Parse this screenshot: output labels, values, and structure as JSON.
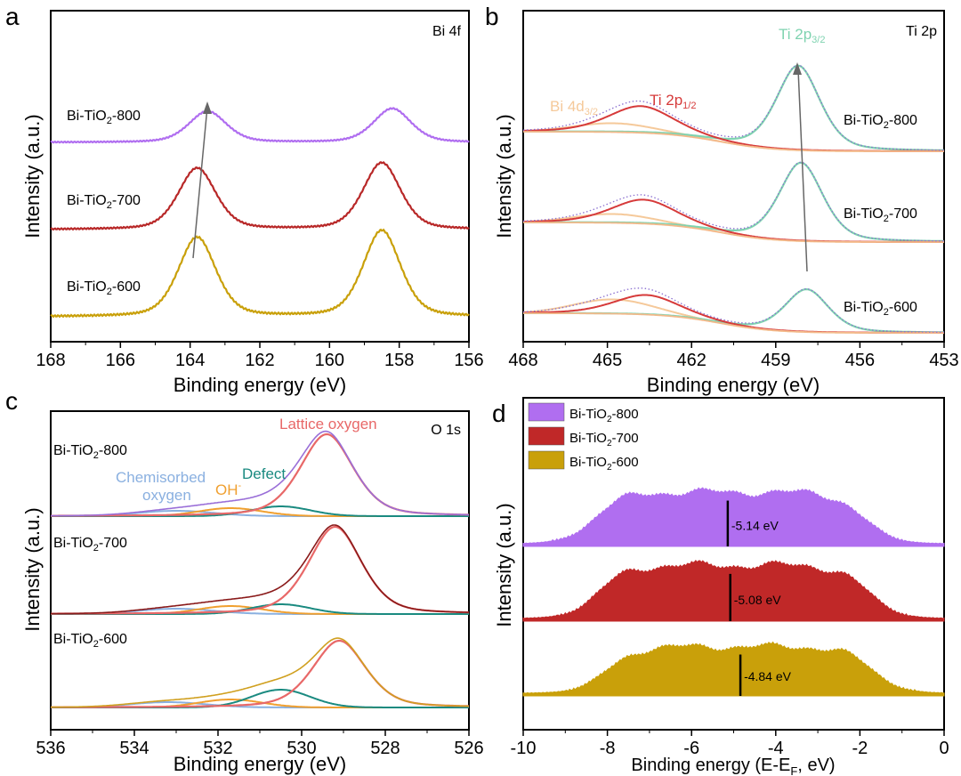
{
  "chart_data": [
    {
      "panel": "a",
      "type": "line",
      "corner_label": "Bi 4f",
      "xlabel": "Binding energy (eV)",
      "ylabel": "Intensity (a.u.)",
      "xlim": [
        168,
        156
      ],
      "x_reversed": true,
      "xticks": [
        "168",
        "166",
        "164",
        "162",
        "160",
        "158",
        "156"
      ],
      "series": [
        {
          "name": "Bi-TiO2-800",
          "color": "#b06ef0",
          "peaks": [
            163.5,
            158.2
          ],
          "offset": 0.0
        },
        {
          "name": "Bi-TiO2-700",
          "color": "#b82828",
          "peaks": [
            163.8,
            158.5
          ],
          "offset": 0.0
        },
        {
          "name": "Bi-TiO2-600",
          "color": "#c9a00a",
          "peaks": [
            163.8,
            158.5
          ],
          "offset": 0.0
        }
      ],
      "labels_text": [
        {
          "pre": "Bi-TiO",
          "sub": "2",
          "post": "-800"
        },
        {
          "pre": "Bi-TiO",
          "sub": "2",
          "post": "-700"
        },
        {
          "pre": "Bi-TiO",
          "sub": "2",
          "post": "-600"
        }
      ]
    },
    {
      "panel": "b",
      "type": "line",
      "corner_label": "Ti 2p",
      "xlabel": "Binding energy (eV)",
      "ylabel": "Intensity (a.u.)",
      "xlim": [
        468,
        453
      ],
      "x_reversed": true,
      "xticks": [
        "468",
        "465",
        "462",
        "459",
        "456",
        "453"
      ],
      "annotations": [
        {
          "pre": "Ti 2p",
          "sub": "3/2",
          "color": "#7fd3b0"
        },
        {
          "pre": "Ti 2p",
          "sub": "1/2",
          "color": "#d63a3a"
        },
        {
          "pre": "Bi 4d",
          "sub": "3/2",
          "color": "#f5c99a"
        }
      ],
      "series": [
        {
          "name": "Bi-TiO2-800",
          "ti32_peak": 458.2,
          "ti12_peak": 463.8
        },
        {
          "name": "Bi-TiO2-700",
          "ti32_peak": 458.1,
          "ti12_peak": 463.7
        },
        {
          "name": "Bi-TiO2-600",
          "ti32_peak": 457.9,
          "ti12_peak": 463.6
        }
      ],
      "labels_text": [
        {
          "pre": "Bi-TiO",
          "sub": "2",
          "post": "-800"
        },
        {
          "pre": "Bi-TiO",
          "sub": "2",
          "post": "-700"
        },
        {
          "pre": "Bi-TiO",
          "sub": "2",
          "post": "-600"
        }
      ]
    },
    {
      "panel": "c",
      "type": "line",
      "corner_label": "O 1s",
      "xlabel": "Binding energy (eV)",
      "ylabel": "Intensity (a.u.)",
      "xlim": [
        536,
        526
      ],
      "x_reversed": true,
      "xticks": [
        "536",
        "534",
        "532",
        "530",
        "528",
        "526"
      ],
      "annotations": [
        {
          "text": "Lattice oxygen",
          "color": "#e86868"
        },
        {
          "text": "Defect",
          "color": "#1a8a80"
        },
        {
          "pre": "OH",
          "sup": "-",
          "color": "#f0a030"
        },
        {
          "text": "Chemisorbed",
          "color": "#8ab0e0"
        },
        {
          "text": "oxygen",
          "color": "#8ab0e0"
        }
      ],
      "series": [
        {
          "name": "Bi-TiO2-800",
          "lattice": 529.4,
          "defect": 530.5,
          "oh": 531.7,
          "chem": 533.0
        },
        {
          "name": "Bi-TiO2-700",
          "lattice": 529.2,
          "defect": 530.5,
          "oh": 531.7,
          "chem": 533.0
        },
        {
          "name": "Bi-TiO2-600",
          "lattice": 529.1,
          "defect": 530.5,
          "oh": 531.7,
          "chem": 533.2
        }
      ],
      "labels_text": [
        {
          "pre": "Bi-TiO",
          "sub": "2",
          "post": "-800"
        },
        {
          "pre": "Bi-TiO",
          "sub": "2",
          "post": "-700"
        },
        {
          "pre": "Bi-TiO",
          "sub": "2",
          "post": "-600"
        }
      ]
    },
    {
      "panel": "d",
      "type": "area",
      "xlabel": "Binding energy (E-E",
      "xlabel_sub": "F",
      "xlabel_post": ", eV)",
      "ylabel": "Intensity (a.u.)",
      "xlim": [
        -10,
        0
      ],
      "xticks": [
        "-10",
        "-8",
        "-6",
        "-4",
        "-2",
        "0"
      ],
      "legend": [
        {
          "pre": "Bi-TiO",
          "sub": "2",
          "post": "-800",
          "color": "#b06ef0"
        },
        {
          "pre": "Bi-TiO",
          "sub": "2",
          "post": "-700",
          "color": "#c02828"
        },
        {
          "pre": "Bi-TiO",
          "sub": "2",
          "post": "-600",
          "color": "#c9a00a"
        }
      ],
      "series": [
        {
          "name": "Bi-TiO2-800",
          "color": "#b06ef0",
          "marker_x": -5.14,
          "marker_label": "-5.14 eV",
          "start": -8.3,
          "end": -1.9
        },
        {
          "name": "Bi-TiO2-700",
          "color": "#c02828",
          "marker_x": -5.08,
          "marker_label": "-5.08 eV",
          "start": -8.2,
          "end": -1.8
        },
        {
          "name": "Bi-TiO2-600",
          "color": "#c9a00a",
          "marker_x": -4.84,
          "marker_label": "-4.84 eV",
          "start": -8.0,
          "end": -1.7
        }
      ]
    }
  ],
  "panel_letters": [
    "a",
    "b",
    "c",
    "d"
  ]
}
